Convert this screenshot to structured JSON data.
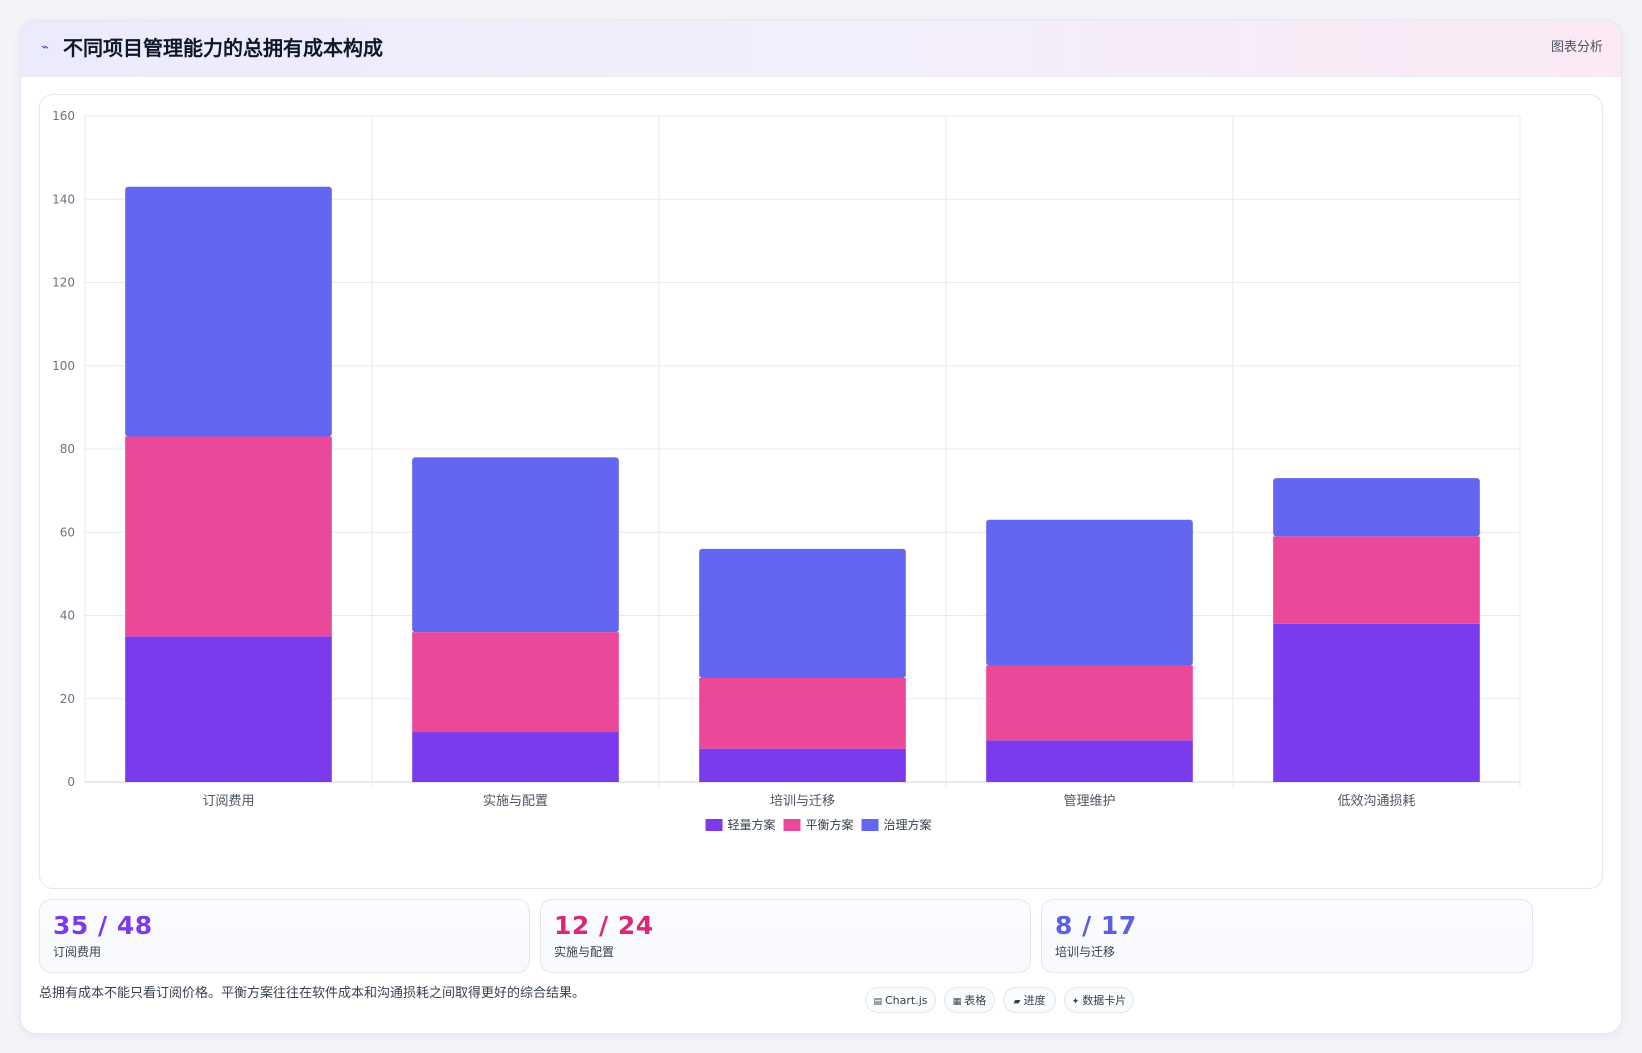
{
  "header": {
    "icon": "wave-icon",
    "title": "不同项目管理能力的总拥有成本构成",
    "tag": "图表分析"
  },
  "chart_data": {
    "type": "bar",
    "stacked": true,
    "categories": [
      "订阅费用",
      "实施与配置",
      "培训与迁移",
      "管理维护",
      "低效沟通损耗"
    ],
    "series": [
      {
        "name": "轻量方案",
        "color": "#7c3aed",
        "values": [
          35,
          12,
          8,
          10,
          38
        ]
      },
      {
        "name": "平衡方案",
        "color": "#ec4899",
        "values": [
          48,
          24,
          17,
          18,
          21
        ]
      },
      {
        "name": "治理方案",
        "color": "#6366f1",
        "values": [
          60,
          42,
          31,
          35,
          14
        ]
      }
    ],
    "ylim": [
      0,
      160
    ],
    "yticks": [
      0,
      20,
      40,
      60,
      80,
      100,
      120,
      140,
      160
    ],
    "grid": true,
    "legend": "bottom"
  },
  "stats": [
    {
      "value": "35 / 48",
      "label": "订阅费用",
      "color": "#7c3aed"
    },
    {
      "value": "12 / 24",
      "label": "实施与配置",
      "color": "#db2777"
    },
    {
      "value": "8 / 17",
      "label": "培训与迁移",
      "color": "#5b5fe0"
    }
  ],
  "note": "总拥有成本不能只看订阅价格。平衡方案往往在软件成本和沟通损耗之间取得更好的综合结果。",
  "pills": [
    {
      "icon": "chart-icon",
      "label": "Chart.js"
    },
    {
      "icon": "table-icon",
      "label": "表格"
    },
    {
      "icon": "progress-icon",
      "label": "进度"
    },
    {
      "icon": "card-icon",
      "label": "数据卡片"
    }
  ]
}
